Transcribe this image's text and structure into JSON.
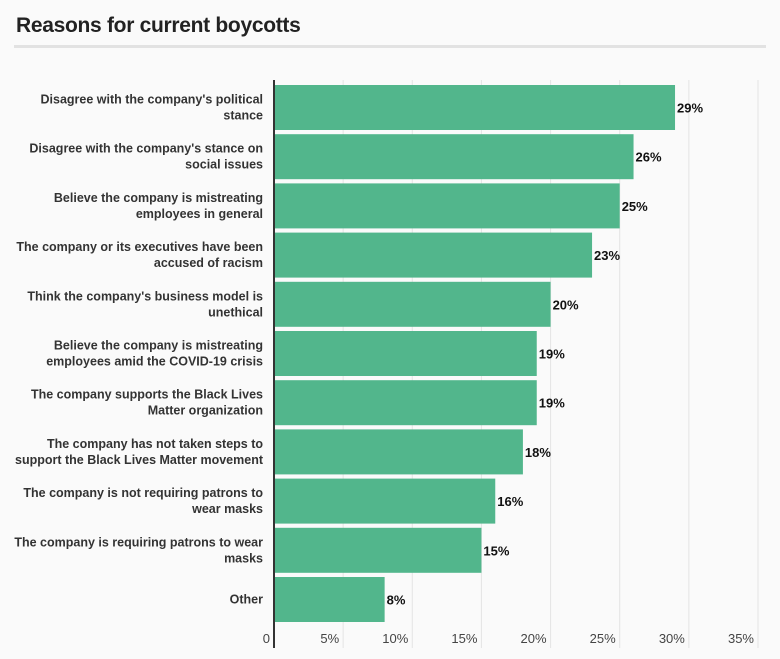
{
  "chart_data": {
    "type": "bar",
    "orientation": "horizontal",
    "title": "Reasons for current boycotts",
    "categories": [
      [
        "Disagree with the company's political",
        "stance"
      ],
      [
        "Disagree with the company's stance on",
        "social issues"
      ],
      [
        "Believe the company is mistreating",
        "employees in general"
      ],
      [
        "The company or its executives have been",
        "accused of racism"
      ],
      [
        "Think the company's business model is",
        "unethical"
      ],
      [
        "Believe the company is mistreating",
        "employees amid the COVID-19 crisis"
      ],
      [
        "The company supports the Black Lives",
        "Matter organization"
      ],
      [
        "The company has not taken steps to",
        "support the Black Lives Matter movement"
      ],
      [
        "The company is not requiring patrons to",
        "wear masks"
      ],
      [
        "The company is requiring patrons to wear",
        "masks"
      ],
      [
        "Other"
      ]
    ],
    "values": [
      29,
      26,
      25,
      23,
      20,
      19,
      19,
      18,
      16,
      15,
      8
    ],
    "value_labels": [
      "29%",
      "26%",
      "25%",
      "23%",
      "20%",
      "19%",
      "19%",
      "18%",
      "16%",
      "15%",
      "8%"
    ],
    "xticks": [
      "0",
      "5%",
      "10%",
      "15%",
      "20%",
      "25%",
      "30%",
      "35%"
    ],
    "xlim": [
      0,
      35
    ],
    "grid": true,
    "color": "#52b68c"
  }
}
